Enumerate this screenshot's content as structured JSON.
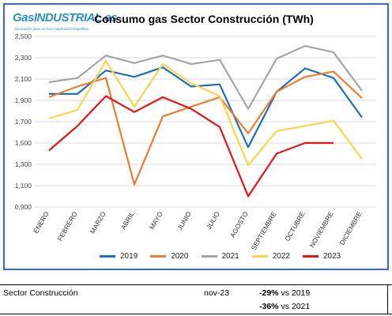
{
  "logo": {
    "name": "GasINDUSTRIAL.es",
    "tagline": "Asociación para un Gas Industrial Competitivo"
  },
  "chart_data": {
    "type": "line",
    "title": "Consumo gas Sector Construcción (TWh)",
    "xlabel": "",
    "ylabel": "",
    "ylim": [
      0.9,
      2.5
    ],
    "yticks": [
      "0,900",
      "1,100",
      "1,300",
      "1,500",
      "1,700",
      "1,900",
      "2,100",
      "2,300",
      "2,500"
    ],
    "categories": [
      "ENERO",
      "FEBRERO",
      "MARZO",
      "ABRIL",
      "MAYO",
      "JUNIO",
      "JULIO",
      "AGOSTO",
      "SEPTIEMBRE",
      "OCTUBRE",
      "NOVIEMBRE",
      "DICIEMBRE"
    ],
    "grid": true,
    "legend": "bottom",
    "series": [
      {
        "name": "2019",
        "color": "#1f6fb6",
        "values": [
          1.96,
          1.96,
          2.18,
          2.12,
          2.21,
          2.03,
          2.05,
          1.46,
          1.98,
          2.2,
          2.11,
          1.74
        ]
      },
      {
        "name": "2020",
        "color": "#ed7d31",
        "values": [
          1.93,
          2.03,
          2.11,
          1.11,
          1.75,
          1.84,
          1.93,
          1.59,
          1.98,
          2.12,
          2.17,
          1.92
        ]
      },
      {
        "name": "2021",
        "color": "#a5a5a5",
        "values": [
          2.07,
          2.11,
          2.32,
          2.25,
          2.32,
          2.24,
          2.28,
          1.82,
          2.29,
          2.41,
          2.35,
          1.99
        ]
      },
      {
        "name": "2022",
        "color": "#ffd34e",
        "values": [
          1.73,
          1.81,
          2.27,
          1.84,
          2.24,
          2.06,
          1.94,
          1.29,
          1.61,
          1.66,
          1.71,
          1.35
        ]
      },
      {
        "name": "2023",
        "color": "#e8141a",
        "values": [
          1.43,
          1.66,
          1.94,
          1.79,
          1.93,
          1.82,
          1.65,
          1.0,
          1.4,
          1.5,
          1.5,
          null
        ]
      }
    ]
  },
  "summary": {
    "sector": "Sector Construcción",
    "period": "nov-23",
    "rows": [
      {
        "pct": "-29%",
        "vs": "vs 2019"
      },
      {
        "pct": "-36%",
        "vs": "vs 2021"
      }
    ]
  }
}
